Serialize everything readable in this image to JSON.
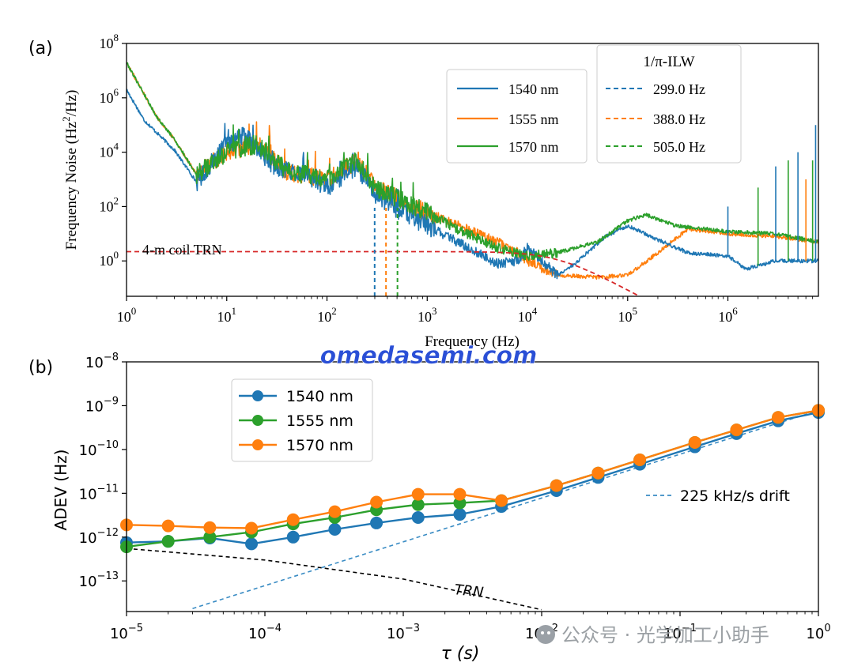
{
  "colors": {
    "blue": "#1f77b4",
    "orange": "#ff7f0e",
    "green": "#2ca02c",
    "red": "#d62728",
    "black": "#000000",
    "drift": "#3a8cc4",
    "watermark": "#2a4fd6"
  },
  "watermark": {
    "site": "omedasemi.com",
    "wechat": "公众号 · 光学加工小助手"
  },
  "chart_data": [
    {
      "panel": "(a)",
      "type": "line",
      "xscale": "log",
      "yscale": "log",
      "xlim": [
        1,
        8000000
      ],
      "ylim": [
        0.05,
        100000000
      ],
      "xlabel": "Frequency (Hz)",
      "ylabel_main": "Frequency Noise (Hz",
      "ylabel_sup": "2",
      "ylabel_end": "/Hz)",
      "x_ticks": [
        {
          "value": 1,
          "base": "10",
          "exp": "0"
        },
        {
          "value": 10,
          "base": "10",
          "exp": "1"
        },
        {
          "value": 100,
          "base": "10",
          "exp": "2"
        },
        {
          "value": 1000,
          "base": "10",
          "exp": "3"
        },
        {
          "value": 10000,
          "base": "10",
          "exp": "4"
        },
        {
          "value": 100000,
          "base": "10",
          "exp": "5"
        },
        {
          "value": 1000000,
          "base": "10",
          "exp": "6"
        }
      ],
      "y_ticks": [
        {
          "value": 1,
          "base": "10",
          "exp": "0"
        },
        {
          "value": 100,
          "base": "10",
          "exp": "2"
        },
        {
          "value": 10000,
          "base": "10",
          "exp": "4"
        },
        {
          "value": 1000000,
          "base": "10",
          "exp": "6"
        },
        {
          "value": 100000000,
          "base": "10",
          "exp": "8"
        }
      ],
      "legend_series_title": "",
      "legend_ilw_title": "1/π-ILW",
      "series": [
        {
          "name": "1540 nm",
          "color_key": "blue",
          "anchors": [
            [
              1,
              2000000
            ],
            [
              1.5,
              150000
            ],
            [
              3,
              12000
            ],
            [
              5,
              800
            ],
            [
              10,
              20000
            ],
            [
              15,
              40000
            ],
            [
              30,
              3000
            ],
            [
              60,
              1500
            ],
            [
              100,
              500
            ],
            [
              200,
              3000
            ],
            [
              300,
              300
            ],
            [
              500,
              80
            ],
            [
              1000,
              20
            ],
            [
              2000,
              5
            ],
            [
              5000,
              0.8
            ],
            [
              8000,
              1
            ],
            [
              10000,
              3
            ],
            [
              20000,
              0.3
            ],
            [
              30000,
              0.8
            ],
            [
              60000,
              8
            ],
            [
              100000,
              20
            ],
            [
              200000,
              6
            ],
            [
              400000,
              2
            ],
            [
              1000000,
              1.5
            ],
            [
              1500000,
              0.5
            ],
            [
              3000000,
              1
            ],
            [
              8000000,
              1
            ]
          ]
        },
        {
          "name": "1555 nm",
          "color_key": "orange",
          "anchors": [
            [
              1,
              20000000
            ],
            [
              2,
              200000
            ],
            [
              3,
              30000
            ],
            [
              5,
              1500
            ],
            [
              10,
              10000
            ],
            [
              20,
              20000
            ],
            [
              40,
              2000
            ],
            [
              100,
              1000
            ],
            [
              200,
              5000
            ],
            [
              300,
              500
            ],
            [
              500,
              200
            ],
            [
              1000,
              60
            ],
            [
              2000,
              20
            ],
            [
              5000,
              5
            ],
            [
              8000,
              2
            ],
            [
              10000,
              1
            ],
            [
              20000,
              0.3
            ],
            [
              50000,
              0.25
            ],
            [
              100000,
              0.3
            ],
            [
              200000,
              2
            ],
            [
              400000,
              15
            ],
            [
              1000000,
              10
            ],
            [
              3000000,
              8
            ],
            [
              8000000,
              5
            ]
          ]
        },
        {
          "name": "1570 nm",
          "color_key": "green",
          "anchors": [
            [
              1,
              20000000
            ],
            [
              2,
              200000
            ],
            [
              3,
              30000
            ],
            [
              5,
              1500
            ],
            [
              10,
              10000
            ],
            [
              20,
              20000
            ],
            [
              40,
              2000
            ],
            [
              100,
              1000
            ],
            [
              200,
              5000
            ],
            [
              300,
              500
            ],
            [
              500,
              200
            ],
            [
              1000,
              60
            ],
            [
              2000,
              15
            ],
            [
              5000,
              3
            ],
            [
              10000,
              1.5
            ],
            [
              20000,
              2
            ],
            [
              50000,
              5
            ],
            [
              100000,
              30
            ],
            [
              150000,
              50
            ],
            [
              300000,
              20
            ],
            [
              1000000,
              12
            ],
            [
              3000000,
              10
            ],
            [
              8000000,
              5
            ]
          ]
        }
      ],
      "ilw_lines": [
        {
          "label": "299.0 Hz",
          "x": 299.0,
          "color_key": "blue"
        },
        {
          "label": "388.0 Hz",
          "x": 388.0,
          "color_key": "orange"
        },
        {
          "label": "505.0 Hz",
          "x": 505.0,
          "color_key": "green"
        }
      ],
      "trn": {
        "label": "4-m coil TRN",
        "a": 2.2,
        "fc": 20000
      },
      "spikes": [
        {
          "x": 1000000,
          "y": 100,
          "series": "blue"
        },
        {
          "x": 2000000,
          "y": 500,
          "series": "green"
        },
        {
          "x": 3000000,
          "y": 3000,
          "series": "blue"
        },
        {
          "x": 4000000,
          "y": 5000,
          "series": "green"
        },
        {
          "x": 5000000,
          "y": 10000,
          "series": "blue"
        },
        {
          "x": 6000000,
          "y": 1000,
          "series": "orange"
        },
        {
          "x": 7000000,
          "y": 5000,
          "series": "green"
        },
        {
          "x": 7500000,
          "y": 100000,
          "series": "blue"
        }
      ]
    },
    {
      "panel": "(b)",
      "type": "line",
      "xscale": "log",
      "yscale": "log",
      "xlim": [
        1e-05,
        1
      ],
      "ylim": [
        2e-14,
        1e-08
      ],
      "xlabel": "τ (s)",
      "ylabel": "ADEV (Hz)",
      "x_ticks": [
        {
          "value": 1e-05,
          "base": "10",
          "exp": "−5"
        },
        {
          "value": 0.0001,
          "base": "10",
          "exp": "−4"
        },
        {
          "value": 0.001,
          "base": "10",
          "exp": "−3"
        },
        {
          "value": 0.01,
          "base": "10",
          "exp": "−2"
        },
        {
          "value": 0.1,
          "base": "10",
          "exp": "−1"
        },
        {
          "value": 1,
          "base": "10",
          "exp": "0"
        }
      ],
      "y_ticks": [
        {
          "value": 1e-13,
          "base": "10",
          "exp": "−13"
        },
        {
          "value": 1e-12,
          "base": "10",
          "exp": "−12"
        },
        {
          "value": 1e-11,
          "base": "10",
          "exp": "−11"
        },
        {
          "value": 1e-10,
          "base": "10",
          "exp": "−10"
        },
        {
          "value": 1e-09,
          "base": "10",
          "exp": "−9"
        },
        {
          "value": 1e-08,
          "base": "10",
          "exp": "−8"
        }
      ],
      "tau": [
        1e-05,
        2e-05,
        4e-05,
        8e-05,
        0.00016,
        0.00032,
        0.00064,
        0.00128,
        0.00256,
        0.00512,
        0.0128,
        0.0256,
        0.0512,
        0.128,
        0.256,
        0.512,
        1
      ],
      "series": [
        {
          "name": "1540 nm",
          "color_key": "blue",
          "values": [
            7.5e-13,
            8e-13,
            9.5e-13,
            7e-13,
            1e-12,
            1.5e-12,
            2.1e-12,
            2.8e-12,
            3.3e-12,
            5e-12,
            1.15e-11,
            2.3e-11,
            4.6e-11,
            1.15e-10,
            2.3e-10,
            4.5e-10,
            7e-10
          ]
        },
        {
          "name": "1555 nm",
          "color_key": "green",
          "values": [
            6e-13,
            8e-13,
            1e-12,
            1.3e-12,
            2e-12,
            2.8e-12,
            4.2e-12,
            5.5e-12,
            6e-12,
            6.8e-12,
            1.5e-11,
            2.9e-11,
            5.8e-11,
            1.45e-10,
            2.8e-10,
            5.4e-10,
            7.8e-10
          ]
        },
        {
          "name": "1570 nm",
          "color_key": "orange",
          "values": [
            1.9e-12,
            1.8e-12,
            1.65e-12,
            1.6e-12,
            2.5e-12,
            3.8e-12,
            6.3e-12,
            9.5e-12,
            9.5e-12,
            6.8e-12,
            1.5e-11,
            2.9e-11,
            5.8e-11,
            1.45e-10,
            2.8e-10,
            5.4e-10,
            7.8e-10
          ]
        }
      ],
      "drift": {
        "label": "225 kHz/s drift",
        "coef": 7.8e-10
      },
      "trn": {
        "label": "TRN",
        "anchors": [
          [
            1e-05,
            5.5e-13
          ],
          [
            0.0001,
            3e-13
          ],
          [
            0.001,
            1.1e-13
          ],
          [
            0.01,
            2.2e-14
          ]
        ]
      }
    }
  ]
}
